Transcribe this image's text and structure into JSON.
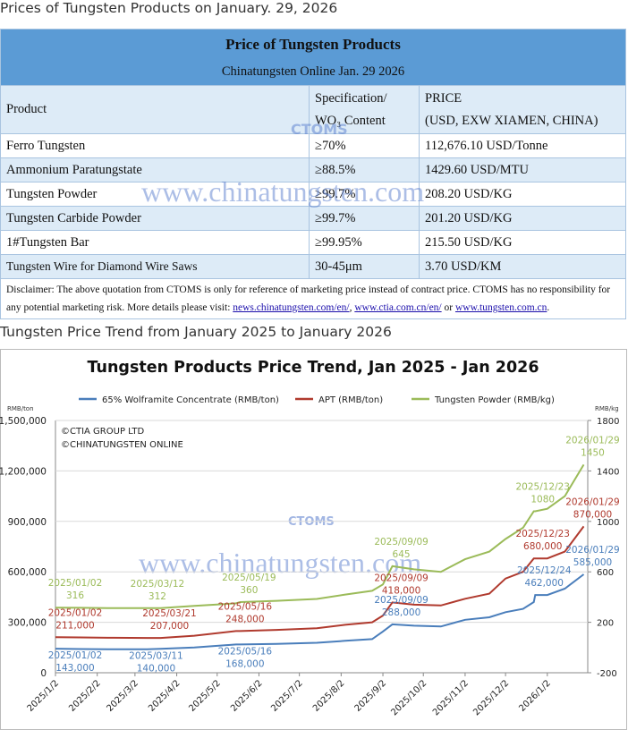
{
  "page_title": "Prices of Tungsten Products on January. 29, 2026",
  "watermark": "www.chinatungsten.com",
  "watermark_logo": "CTOMS",
  "table": {
    "title": "Price of Tungsten Products",
    "subtitle": "Chinatungsten Online Jan. 29 2026",
    "header": [
      "Product",
      "Specification/",
      "WO₃ Content",
      "PRICE",
      "(USD, EXW XIAMEN, CHINA)"
    ],
    "rows": [
      [
        "Ferro Tungsten",
        "≥70%",
        "112,676.10 USD/Tonne"
      ],
      [
        "Ammonium Paratungstate",
        "≥88.5%",
        "1429.60 USD/MTU"
      ],
      [
        "Tungsten Powder",
        "≥99.7%",
        "208.20 USD/KG"
      ],
      [
        "Tungsten Carbide Powder",
        "≥99.7%",
        "201.20 USD/KG"
      ],
      [
        "1#Tungsten Bar",
        "≥99.95%",
        "215.50 USD/KG"
      ],
      [
        "Tungsten Wire for Diamond Wire Saws",
        "30-45μm",
        "3.70 USD/KM"
      ]
    ],
    "disclaimer": {
      "text": "Disclaimer: The above quotation from CTOMS is only for reference of marketing price instead of contract price. CTOMS has no responsibility for any potential marketing risk. More details please visit:",
      "links": [
        "news.chinatungsten.com/en/",
        "www.ctia.com.cn/en/",
        "www.tungsten.com.cn"
      ],
      "separators": [
        ",",
        ", ",
        "or",
        "."
      ]
    }
  },
  "section_title": "Tungsten Price Trend from January 2025 to January 2026",
  "chart_data": {
    "type": "line",
    "title": "Tungsten Products Price Trend, Jan 2025 - Jan 2026",
    "y_unit": "RMB/ton",
    "y2_unit": "RMB/kg",
    "credits": [
      "©CTIA GROUP LTD",
      "©CHINATUNGSTEN ONLINE"
    ],
    "x": [
      "2025/1/2",
      "2025/1/20",
      "2025/2/10",
      "2025/3/11",
      "2025/3/21",
      "2025/4/15",
      "2025/5/16",
      "2025/5/19",
      "2025/6/15",
      "2025/7/15",
      "2025/8/5",
      "2025/8/25",
      "2025/9/2",
      "2025/9/9",
      "2025/9/25",
      "2025/10/15",
      "2025/11/2",
      "2025/11/20",
      "2025/12/2",
      "2025/12/15",
      "2025/12/23",
      "2025/12/24",
      "2026/1/2",
      "2026/1/15",
      "2026/1/29"
    ],
    "series": [
      {
        "name": "65% Wolframite Concentrate (RMB/ton)",
        "color": "#4a7ebb",
        "values": [
          143000,
          141000,
          140000,
          140000,
          142000,
          150000,
          168000,
          168000,
          172000,
          178000,
          190000,
          200000,
          245000,
          288000,
          280000,
          275000,
          315000,
          330000,
          360000,
          380000,
          420000,
          462000,
          462000,
          500000,
          585000
        ]
      },
      {
        "name": "APT (RMB/ton)",
        "color": "#b03a2e",
        "values": [
          211000,
          210000,
          208000,
          207000,
          207000,
          220000,
          248000,
          248000,
          255000,
          265000,
          285000,
          300000,
          340000,
          418000,
          405000,
          400000,
          440000,
          470000,
          560000,
          600000,
          680000,
          680000,
          680000,
          720000,
          870000
        ]
      },
      {
        "name": "Tungsten Powder (RMB/kg)",
        "color": "#9bbb59",
        "axis": "y2",
        "values": [
          316,
          315,
          313,
          312,
          312,
          330,
          350,
          360,
          370,
          385,
          420,
          450,
          500,
          645,
          620,
          600,
          700,
          760,
          860,
          950,
          1080,
          1080,
          1100,
          1200,
          1450
        ]
      }
    ],
    "xlim": [
      "2025/1/2",
      "2026/2/1"
    ],
    "xticks": [
      "2025/1/2",
      "2025/2/2",
      "2025/3/2",
      "2025/4/2",
      "2025/5/2",
      "2025/6/2",
      "2025/7/2",
      "2025/8/2",
      "2025/9/2",
      "2025/10/2",
      "2025/11/2",
      "2025/12/2",
      "2026/1/2"
    ],
    "ylim": [
      0,
      1500000
    ],
    "yticks": [
      0,
      {
        "value": 300000,
        "label": "300,000"
      },
      {
        "value": 600000,
        "label": "600,000"
      },
      {
        "value": 900000,
        "label": "900,000"
      },
      {
        "value": 1200000,
        "label": "1,200,000"
      },
      {
        "value": 1500000,
        "label": "1,500,000"
      }
    ],
    "y2lim": [
      -200,
      1800
    ],
    "y2ticks": [
      -200,
      200,
      600,
      1000,
      1400,
      1800
    ],
    "grid": true,
    "annotations": [
      {
        "series": 2,
        "date": "2025/01/02",
        "value": 316
      },
      {
        "series": 2,
        "date": "2025/03/12",
        "value": 312
      },
      {
        "series": 2,
        "date": "2025/05/19",
        "value": 360
      },
      {
        "series": 2,
        "date": "2025/09/09",
        "value": 645
      },
      {
        "series": 2,
        "date": "2025/12/23",
        "value": 1080
      },
      {
        "series": 2,
        "date": "2026/01/29",
        "value": 1450
      },
      {
        "series": 1,
        "date": "2025/01/02",
        "value": 211000,
        "value_label": "211,000"
      },
      {
        "series": 1,
        "date": "2025/03/21",
        "value": 207000,
        "value_label": "207,000"
      },
      {
        "series": 1,
        "date": "2025/05/16",
        "value": 248000,
        "value_label": "248,000"
      },
      {
        "series": 1,
        "date": "2025/09/09",
        "value": 418000,
        "value_label": "418,000"
      },
      {
        "series": 1,
        "date": "2025/12/23",
        "value": 680000,
        "value_label": "680,000"
      },
      {
        "series": 1,
        "date": "2026/01/29",
        "value": 870000,
        "value_label": "870,000"
      },
      {
        "series": 0,
        "date": "2025/01/02",
        "value": 143000,
        "value_label": "143,000"
      },
      {
        "series": 0,
        "date": "2025/03/11",
        "value": 140000,
        "value_label": "140,000"
      },
      {
        "series": 0,
        "date": "2025/05/16",
        "value": 168000,
        "value_label": "168,000"
      },
      {
        "series": 0,
        "date": "2025/09/09",
        "value": 288000,
        "value_label": "288,000"
      },
      {
        "series": 0,
        "date": "2025/12/24",
        "value": 462000,
        "value_label": "462,000"
      },
      {
        "series": 0,
        "date": "2026/01/29",
        "value": 585000,
        "value_label": "585,000"
      }
    ]
  }
}
